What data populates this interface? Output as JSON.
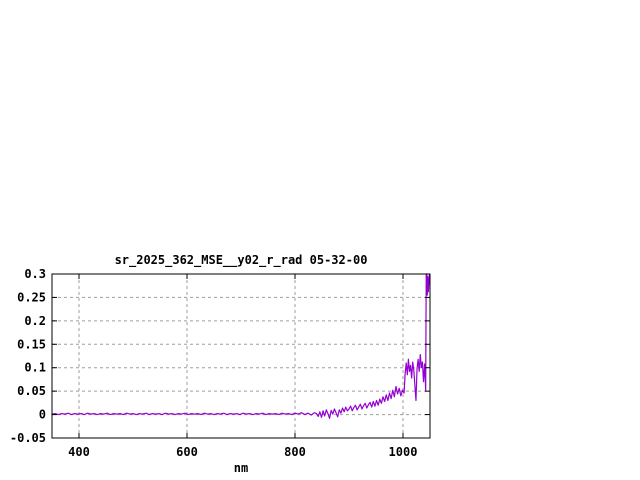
{
  "page": {
    "background": "#ffffff"
  },
  "chart_data": {
    "type": "line",
    "title": "sr_2025_362_MSE__y02_r_rad 05-32-00",
    "xlabel": "nm",
    "ylabel": "",
    "xlim": [
      350,
      1050
    ],
    "ylim": [
      -0.05,
      0.3
    ],
    "grid": true,
    "legend": "none",
    "border_color": "#000000",
    "grid_color": "#9e9e9e",
    "line_color": "#9400d3",
    "xticks": [
      {
        "v": 400,
        "label": "400"
      },
      {
        "v": 600,
        "label": "600"
      },
      {
        "v": 800,
        "label": "800"
      },
      {
        "v": 1000,
        "label": "1000"
      }
    ],
    "yticks": [
      {
        "v": -0.05,
        "label": "-0.05"
      },
      {
        "v": 0,
        "label": "0"
      },
      {
        "v": 0.05,
        "label": "0.05"
      },
      {
        "v": 0.1,
        "label": "0.1"
      },
      {
        "v": 0.15,
        "label": "0.15"
      },
      {
        "v": 0.2,
        "label": "0.2"
      },
      {
        "v": 0.25,
        "label": "0.25"
      },
      {
        "v": 0.3,
        "label": "0.3"
      }
    ],
    "points": [
      [
        350,
        0.001
      ],
      [
        356,
        0.002
      ],
      [
        362,
        0.0
      ],
      [
        368,
        0.002
      ],
      [
        374,
        0.001
      ],
      [
        380,
        0.003
      ],
      [
        386,
        0.0
      ],
      [
        392,
        0.002
      ],
      [
        398,
        0.001
      ],
      [
        404,
        0.002
      ],
      [
        410,
        0.0
      ],
      [
        416,
        0.003
      ],
      [
        422,
        0.001
      ],
      [
        428,
        0.002
      ],
      [
        434,
        0.0
      ],
      [
        440,
        0.002
      ],
      [
        446,
        0.001
      ],
      [
        452,
        0.003
      ],
      [
        458,
        0.0
      ],
      [
        464,
        0.002
      ],
      [
        470,
        0.001
      ],
      [
        476,
        0.002
      ],
      [
        482,
        0.0
      ],
      [
        488,
        0.003
      ],
      [
        494,
        0.001
      ],
      [
        500,
        0.002
      ],
      [
        506,
        0.0
      ],
      [
        512,
        0.002
      ],
      [
        518,
        0.001
      ],
      [
        524,
        0.003
      ],
      [
        530,
        0.0
      ],
      [
        536,
        0.002
      ],
      [
        542,
        0.001
      ],
      [
        548,
        0.002
      ],
      [
        554,
        0.0
      ],
      [
        560,
        0.003
      ],
      [
        566,
        0.001
      ],
      [
        572,
        0.002
      ],
      [
        578,
        0.0
      ],
      [
        584,
        0.002
      ],
      [
        590,
        0.001
      ],
      [
        596,
        0.003
      ],
      [
        602,
        0.0
      ],
      [
        608,
        0.002
      ],
      [
        614,
        0.001
      ],
      [
        620,
        0.002
      ],
      [
        626,
        0.0
      ],
      [
        632,
        0.003
      ],
      [
        638,
        0.001
      ],
      [
        644,
        0.002
      ],
      [
        650,
        0.0
      ],
      [
        656,
        0.002
      ],
      [
        662,
        0.001
      ],
      [
        668,
        0.003
      ],
      [
        674,
        0.0
      ],
      [
        680,
        0.002
      ],
      [
        686,
        0.001
      ],
      [
        692,
        0.002
      ],
      [
        698,
        0.0
      ],
      [
        704,
        0.003
      ],
      [
        710,
        0.001
      ],
      [
        716,
        0.002
      ],
      [
        722,
        0.0
      ],
      [
        728,
        0.002
      ],
      [
        734,
        0.001
      ],
      [
        740,
        0.003
      ],
      [
        746,
        0.0
      ],
      [
        752,
        0.002
      ],
      [
        758,
        0.001
      ],
      [
        764,
        0.002
      ],
      [
        770,
        0.0
      ],
      [
        776,
        0.003
      ],
      [
        782,
        0.001
      ],
      [
        788,
        0.002
      ],
      [
        794,
        0.0
      ],
      [
        800,
        0.003
      ],
      [
        806,
        0.001
      ],
      [
        812,
        0.004
      ],
      [
        818,
        0.0
      ],
      [
        824,
        0.003
      ],
      [
        830,
        -0.001
      ],
      [
        836,
        0.004
      ],
      [
        840,
        0.002
      ],
      [
        843,
        -0.004
      ],
      [
        846,
        0.006
      ],
      [
        849,
        -0.006
      ],
      [
        852,
        0.008
      ],
      [
        855,
        -0.003
      ],
      [
        858,
        0.01
      ],
      [
        861,
        0.002
      ],
      [
        864,
        -0.008
      ],
      [
        867,
        0.009
      ],
      [
        870,
        0.001
      ],
      [
        873,
        0.012
      ],
      [
        876,
        0.004
      ],
      [
        879,
        -0.005
      ],
      [
        882,
        0.01
      ],
      [
        885,
        0.003
      ],
      [
        888,
        0.014
      ],
      [
        891,
        0.006
      ],
      [
        894,
        0.016
      ],
      [
        897,
        0.008
      ],
      [
        900,
        0.012
      ],
      [
        903,
        0.018
      ],
      [
        906,
        0.008
      ],
      [
        909,
        0.015
      ],
      [
        912,
        0.02
      ],
      [
        915,
        0.01
      ],
      [
        918,
        0.016
      ],
      [
        921,
        0.022
      ],
      [
        924,
        0.012
      ],
      [
        927,
        0.019
      ],
      [
        930,
        0.024
      ],
      [
        933,
        0.014
      ],
      [
        936,
        0.021
      ],
      [
        939,
        0.026
      ],
      [
        942,
        0.016
      ],
      [
        945,
        0.028
      ],
      [
        948,
        0.018
      ],
      [
        951,
        0.03
      ],
      [
        954,
        0.02
      ],
      [
        957,
        0.033
      ],
      [
        960,
        0.024
      ],
      [
        963,
        0.038
      ],
      [
        966,
        0.028
      ],
      [
        969,
        0.042
      ],
      [
        972,
        0.03
      ],
      [
        975,
        0.046
      ],
      [
        978,
        0.034
      ],
      [
        981,
        0.052
      ],
      [
        984,
        0.038
      ],
      [
        987,
        0.06
      ],
      [
        990,
        0.044
      ],
      [
        993,
        0.056
      ],
      [
        996,
        0.04
      ],
      [
        999,
        0.052
      ],
      [
        1002,
        0.046
      ],
      [
        1004,
        0.088
      ],
      [
        1006,
        0.11
      ],
      [
        1008,
        0.085
      ],
      [
        1010,
        0.118
      ],
      [
        1012,
        0.092
      ],
      [
        1014,
        0.105
      ],
      [
        1016,
        0.078
      ],
      [
        1018,
        0.112
      ],
      [
        1020,
        0.095
      ],
      [
        1022,
        0.062
      ],
      [
        1024,
        0.03
      ],
      [
        1026,
        0.098
      ],
      [
        1028,
        0.118
      ],
      [
        1030,
        0.092
      ],
      [
        1032,
        0.128
      ],
      [
        1034,
        0.1
      ],
      [
        1036,
        0.112
      ],
      [
        1038,
        0.07
      ],
      [
        1040,
        0.108
      ],
      [
        1042,
        0.052
      ],
      [
        1043,
        0.3
      ],
      [
        1044,
        0.3
      ],
      [
        1045,
        0.255
      ],
      [
        1046,
        0.295
      ],
      [
        1047,
        0.262
      ],
      [
        1049,
        0.3
      ],
      [
        1050,
        0.292
      ]
    ]
  }
}
